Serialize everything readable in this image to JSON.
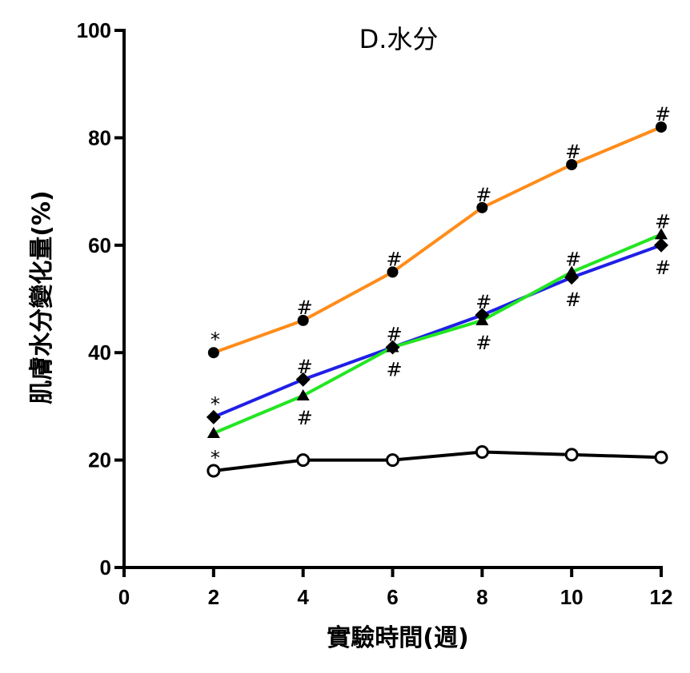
{
  "chart_data": {
    "type": "line",
    "title": "D.水分",
    "xlabel": "實驗時間(週)",
    "ylabel": "肌膚水分變化量(%)",
    "xlim": [
      0,
      12
    ],
    "ylim": [
      0,
      100
    ],
    "xticks": [
      0,
      2,
      4,
      6,
      8,
      10,
      12
    ],
    "yticks": [
      0,
      20,
      40,
      60,
      80,
      100
    ],
    "x": [
      2,
      4,
      6,
      8,
      10,
      12
    ],
    "grid": false,
    "series": [
      {
        "color": "#FF8C1A",
        "marker": "circle-filled",
        "values": [
          40,
          46,
          55,
          67,
          75,
          82
        ],
        "labels": [
          "*",
          "#",
          "#",
          "#",
          "#",
          "#"
        ],
        "label_pos": [
          "above",
          "above",
          "above",
          "above",
          "above",
          "above"
        ]
      },
      {
        "color": "#1F1FE6",
        "marker": "diamond-filled",
        "values": [
          28,
          35,
          41,
          47,
          54,
          60
        ],
        "labels": [
          "*",
          "#",
          "#",
          "#",
          "#",
          "#"
        ],
        "label_pos": [
          "above",
          "above",
          "above",
          "above",
          "below",
          "below"
        ]
      },
      {
        "color": "#22E622",
        "marker": "triangle-filled",
        "values": [
          25,
          32,
          41,
          46,
          55,
          62
        ],
        "labels": [
          "",
          "#",
          "#",
          "#",
          "#",
          "#"
        ],
        "label_pos": [
          "above",
          "below",
          "below",
          "below",
          "above",
          "above"
        ]
      },
      {
        "color": "#000000",
        "marker": "circle-open",
        "values": [
          18,
          20,
          20,
          21.5,
          21,
          20.5
        ],
        "labels": [
          "*",
          "",
          "",
          "",
          "",
          ""
        ],
        "label_pos": [
          "above",
          "above",
          "above",
          "above",
          "above",
          "above"
        ]
      }
    ]
  }
}
